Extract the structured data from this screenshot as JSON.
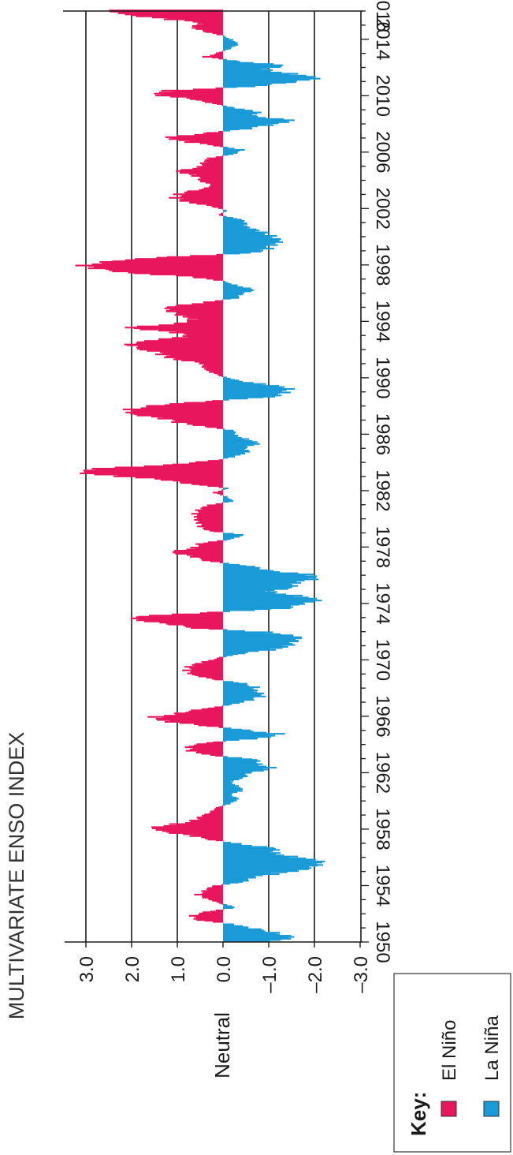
{
  "chart_data": {
    "type": "bar",
    "title": "MULTIVARIATE ENSO INDEX",
    "value_axis": {
      "ticks": [
        3.0,
        2.0,
        1.0,
        0.0,
        -1.0,
        -2.0,
        -3.0
      ],
      "tick_labels": [
        "3.0",
        "2.0",
        "1.0",
        "0.0",
        "–1.0",
        "–2.0",
        "–3.0"
      ],
      "range": [
        -3.0,
        3.0
      ],
      "neutral_label": "Neutral",
      "gridlines_at": [
        3,
        2,
        1,
        -1,
        -2
      ]
    },
    "time_axis": {
      "range": [
        1950,
        2016
      ],
      "tick_labels": [
        1950,
        1954,
        1958,
        1962,
        1966,
        1970,
        1974,
        1978,
        1982,
        1986,
        1990,
        1994,
        1998,
        2002,
        2006,
        2010,
        2014,
        2016
      ]
    },
    "colors": {
      "el_nino": "#e8175d",
      "la_nina": "#1a9ad6",
      "axis": "#222222"
    },
    "legend": {
      "title": "Key:",
      "placement": "bottom",
      "entries": [
        {
          "label": "El Niño",
          "color": "#e8175d"
        },
        {
          "label": "La Niña",
          "color": "#1a9ad6"
        }
      ]
    },
    "series_points": [
      [
        1950.0,
        -1.2
      ],
      [
        1950.3,
        -1.4
      ],
      [
        1950.6,
        -1.3
      ],
      [
        1950.9,
        -0.6
      ],
      [
        1951.2,
        -0.2
      ],
      [
        1951.5,
        0.5
      ],
      [
        1951.8,
        0.8
      ],
      [
        1952.1,
        0.3
      ],
      [
        1952.4,
        -0.3
      ],
      [
        1952.7,
        0.1
      ],
      [
        1953.0,
        0.3
      ],
      [
        1953.3,
        0.6
      ],
      [
        1953.6,
        0.4
      ],
      [
        1953.9,
        0.2
      ],
      [
        1954.2,
        -0.4
      ],
      [
        1954.5,
        -0.7
      ],
      [
        1954.8,
        -1.2
      ],
      [
        1955.1,
        -1.7
      ],
      [
        1955.4,
        -2.3
      ],
      [
        1955.7,
        -2.0
      ],
      [
        1956.0,
        -1.5
      ],
      [
        1956.3,
        -1.2
      ],
      [
        1956.6,
        -1.0
      ],
      [
        1956.9,
        -0.4
      ],
      [
        1957.2,
        0.3
      ],
      [
        1957.5,
        0.8
      ],
      [
        1957.8,
        1.2
      ],
      [
        1958.0,
        1.5
      ],
      [
        1958.3,
        1.1
      ],
      [
        1958.6,
        0.6
      ],
      [
        1958.9,
        0.4
      ],
      [
        1959.2,
        0.3
      ],
      [
        1959.5,
        0.1
      ],
      [
        1959.8,
        -0.2
      ],
      [
        1960.1,
        -0.3
      ],
      [
        1960.4,
        -0.2
      ],
      [
        1960.7,
        -0.4
      ],
      [
        1961.0,
        -0.3
      ],
      [
        1961.3,
        -0.2
      ],
      [
        1961.6,
        -0.4
      ],
      [
        1962.0,
        -0.7
      ],
      [
        1962.3,
        -1.0
      ],
      [
        1962.6,
        -0.9
      ],
      [
        1962.9,
        -0.6
      ],
      [
        1963.2,
        0.3
      ],
      [
        1963.5,
        0.7
      ],
      [
        1963.8,
        0.9
      ],
      [
        1964.1,
        0.2
      ],
      [
        1964.4,
        -0.8
      ],
      [
        1964.7,
        -1.2
      ],
      [
        1965.0,
        -0.5
      ],
      [
        1965.3,
        0.6
      ],
      [
        1965.6,
        1.2
      ],
      [
        1965.9,
        1.5
      ],
      [
        1966.2,
        1.0
      ],
      [
        1966.5,
        0.3
      ],
      [
        1966.8,
        -0.2
      ],
      [
        1967.1,
        -0.6
      ],
      [
        1967.4,
        -1.0
      ],
      [
        1967.7,
        -0.6
      ],
      [
        1968.0,
        -0.8
      ],
      [
        1968.3,
        -0.4
      ],
      [
        1968.6,
        0.3
      ],
      [
        1968.9,
        0.6
      ],
      [
        1969.2,
        0.9
      ],
      [
        1969.5,
        0.7
      ],
      [
        1969.8,
        0.4
      ],
      [
        1970.1,
        0.1
      ],
      [
        1970.4,
        -0.5
      ],
      [
        1970.7,
        -1.1
      ],
      [
        1971.0,
        -1.4
      ],
      [
        1971.3,
        -1.8
      ],
      [
        1971.6,
        -1.5
      ],
      [
        1971.9,
        -1.0
      ],
      [
        1972.2,
        0.6
      ],
      [
        1972.5,
        1.4
      ],
      [
        1972.8,
        1.8
      ],
      [
        1973.0,
        1.9
      ],
      [
        1973.3,
        0.3
      ],
      [
        1973.6,
        -1.3
      ],
      [
        1973.9,
        -1.9
      ],
      [
        1974.2,
        -2.0
      ],
      [
        1974.5,
        -1.6
      ],
      [
        1974.8,
        -1.1
      ],
      [
        1975.1,
        -1.4
      ],
      [
        1975.4,
        -1.7
      ],
      [
        1975.7,
        -2.0
      ],
      [
        1976.0,
        -1.8
      ],
      [
        1976.3,
        -1.1
      ],
      [
        1976.6,
        -0.5
      ],
      [
        1977.0,
        0.4
      ],
      [
        1977.3,
        0.8
      ],
      [
        1977.6,
        1.0
      ],
      [
        1977.9,
        0.7
      ],
      [
        1978.2,
        0.5
      ],
      [
        1978.5,
        -0.2
      ],
      [
        1978.8,
        -0.4
      ],
      [
        1979.1,
        0.3
      ],
      [
        1979.4,
        0.5
      ],
      [
        1979.7,
        0.6
      ],
      [
        1980.0,
        0.5
      ],
      [
        1980.3,
        0.7
      ],
      [
        1980.6,
        0.5
      ],
      [
        1980.9,
        0.3
      ],
      [
        1981.2,
        -0.2
      ],
      [
        1981.5,
        -0.1
      ],
      [
        1981.8,
        0.2
      ],
      [
        1982.1,
        -0.1
      ],
      [
        1982.4,
        0.6
      ],
      [
        1982.7,
        1.4
      ],
      [
        1983.0,
        2.4
      ],
      [
        1983.2,
        3.1
      ],
      [
        1983.5,
        2.7
      ],
      [
        1983.8,
        1.2
      ],
      [
        1984.1,
        0.1
      ],
      [
        1984.4,
        -0.3
      ],
      [
        1984.7,
        -0.5
      ],
      [
        1985.0,
        -0.6
      ],
      [
        1985.3,
        -0.7
      ],
      [
        1985.6,
        -0.5
      ],
      [
        1985.9,
        -0.3
      ],
      [
        1986.2,
        -0.2
      ],
      [
        1986.5,
        0.4
      ],
      [
        1986.8,
        1.0
      ],
      [
        1987.1,
        1.5
      ],
      [
        1987.4,
        1.9
      ],
      [
        1987.7,
        2.2
      ],
      [
        1988.0,
        1.4
      ],
      [
        1988.3,
        0.2
      ],
      [
        1988.6,
        -1.0
      ],
      [
        1988.9,
        -1.5
      ],
      [
        1989.2,
        -1.4
      ],
      [
        1989.5,
        -0.8
      ],
      [
        1989.8,
        -0.3
      ],
      [
        1990.1,
        0.1
      ],
      [
        1990.4,
        0.3
      ],
      [
        1990.7,
        0.4
      ],
      [
        1991.0,
        0.6
      ],
      [
        1991.3,
        1.0
      ],
      [
        1991.6,
        1.4
      ],
      [
        1992.0,
        1.7
      ],
      [
        1992.3,
        2.3
      ],
      [
        1992.6,
        1.4
      ],
      [
        1992.9,
        0.8
      ],
      [
        1993.2,
        1.2
      ],
      [
        1993.5,
        2.0
      ],
      [
        1993.8,
        1.1
      ],
      [
        1994.1,
        0.6
      ],
      [
        1994.4,
        0.9
      ],
      [
        1994.7,
        1.4
      ],
      [
        1995.0,
        1.0
      ],
      [
        1995.3,
        0.4
      ],
      [
        1995.6,
        -0.3
      ],
      [
        1995.9,
        -0.5
      ],
      [
        1996.2,
        -0.6
      ],
      [
        1996.5,
        -0.3
      ],
      [
        1996.8,
        0.0
      ],
      [
        1997.1,
        0.8
      ],
      [
        1997.4,
        2.0
      ],
      [
        1997.7,
        2.9
      ],
      [
        1997.9,
        3.1
      ],
      [
        1998.2,
        2.6
      ],
      [
        1998.5,
        1.1
      ],
      [
        1998.8,
        -0.6
      ],
      [
        1999.1,
        -1.0
      ],
      [
        1999.4,
        -1.2
      ],
      [
        1999.7,
        -1.1
      ],
      [
        2000.0,
        -1.2
      ],
      [
        2000.3,
        -0.8
      ],
      [
        2000.6,
        -0.5
      ],
      [
        2000.9,
        -0.6
      ],
      [
        2001.2,
        -0.3
      ],
      [
        2001.5,
        0.1
      ],
      [
        2001.8,
        -0.1
      ],
      [
        2002.1,
        0.3
      ],
      [
        2002.4,
        0.7
      ],
      [
        2002.7,
        1.1
      ],
      [
        2003.0,
        1.0
      ],
      [
        2003.3,
        0.4
      ],
      [
        2003.6,
        0.3
      ],
      [
        2004.0,
        0.5
      ],
      [
        2004.3,
        0.7
      ],
      [
        2004.6,
        0.9
      ],
      [
        2004.9,
        0.6
      ],
      [
        2005.2,
        0.4
      ],
      [
        2005.5,
        0.3
      ],
      [
        2005.8,
        -0.2
      ],
      [
        2006.1,
        -0.5
      ],
      [
        2006.4,
        0.2
      ],
      [
        2006.7,
        0.9
      ],
      [
        2007.0,
        1.1
      ],
      [
        2007.3,
        0.4
      ],
      [
        2007.6,
        -0.6
      ],
      [
        2007.9,
        -1.1
      ],
      [
        2008.2,
        -1.4
      ],
      [
        2008.5,
        -0.8
      ],
      [
        2008.8,
        -0.7
      ],
      [
        2009.1,
        -0.2
      ],
      [
        2009.4,
        0.2
      ],
      [
        2009.7,
        0.8
      ],
      [
        2010.0,
        1.4
      ],
      [
        2010.3,
        1.2
      ],
      [
        2010.6,
        -0.6
      ],
      [
        2010.9,
        -1.7
      ],
      [
        2011.2,
        -2.0
      ],
      [
        2011.5,
        -1.5
      ],
      [
        2011.8,
        -1.0
      ],
      [
        2012.1,
        -1.2
      ],
      [
        2012.4,
        -0.3
      ],
      [
        2012.7,
        0.4
      ],
      [
        2013.0,
        0.1
      ],
      [
        2013.3,
        -0.2
      ],
      [
        2013.6,
        -0.3
      ],
      [
        2013.9,
        -0.2
      ],
      [
        2014.2,
        0.0
      ],
      [
        2014.5,
        0.5
      ],
      [
        2014.8,
        0.6
      ],
      [
        2015.1,
        0.5
      ],
      [
        2015.4,
        1.4
      ],
      [
        2015.7,
        2.0
      ],
      [
        2015.9,
        2.4
      ],
      [
        2016.0,
        2.3
      ]
    ]
  }
}
